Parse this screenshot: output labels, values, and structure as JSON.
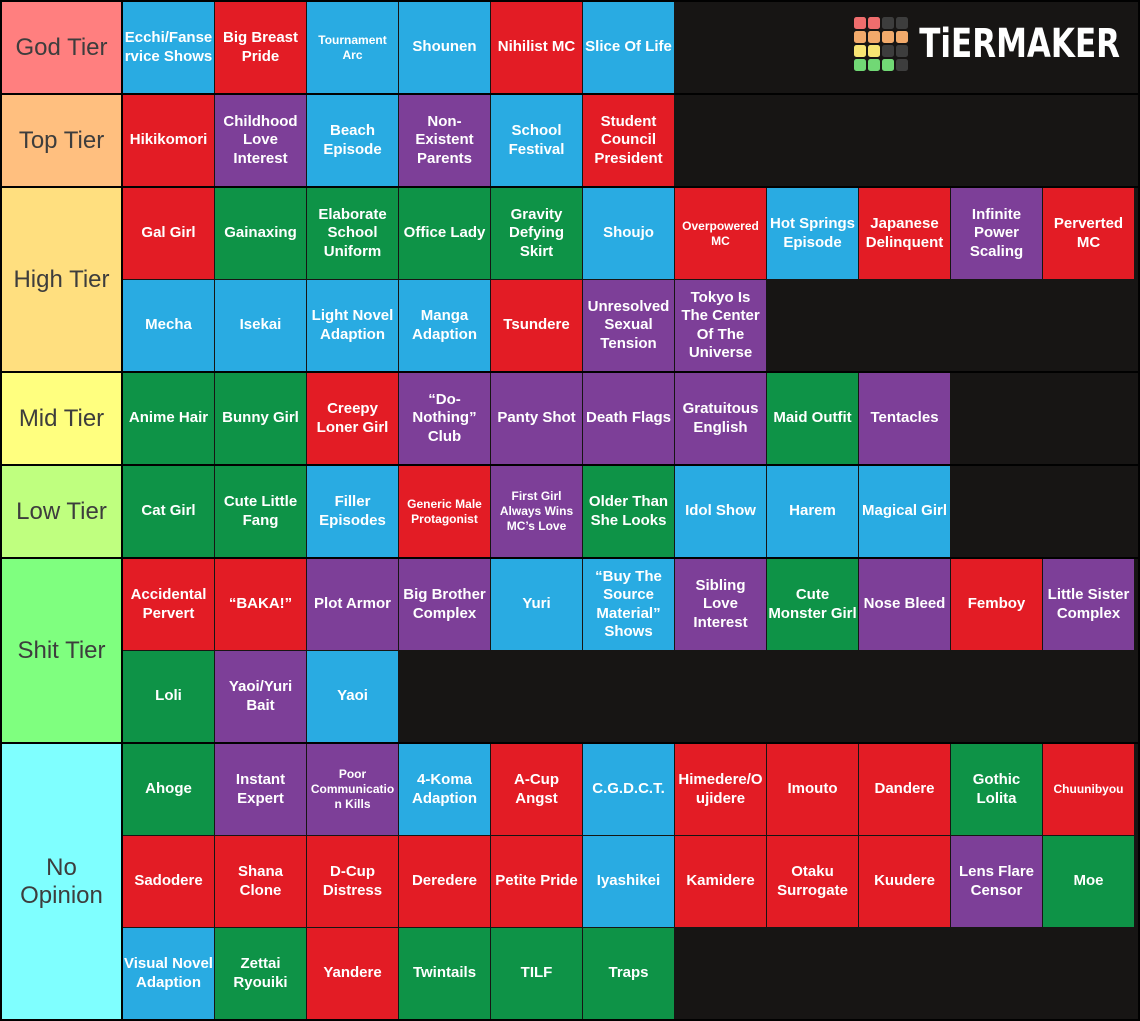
{
  "logo": {
    "wordmark": "TiERMAKER",
    "grid": [
      "#ef6d6d",
      "#ef6d6d",
      "#3d3d3d",
      "#3d3d3d",
      "#f2aa6b",
      "#f2aa6b",
      "#f2aa6b",
      "#f2aa6b",
      "#f7e473",
      "#f7e473",
      "#3d3d3d",
      "#3d3d3d",
      "#71d875",
      "#71d875",
      "#71d875",
      "#3d3d3d"
    ]
  },
  "colors": {
    "red": "#e31c25",
    "blue": "#29abe2",
    "green": "#0e9347",
    "purple": "#7d3f98",
    "board_bg": "#171514",
    "divider": "#010101",
    "tile_text": "#ffffff",
    "label_text": "#3d3d3d"
  },
  "tiers": [
    {
      "label": "God Tier",
      "color": "#ff7f7f",
      "rows": [
        [
          {
            "t": "Ecchi/Fanservice Shows",
            "c": "blue"
          },
          {
            "t": "Big Breast Pride",
            "c": "red"
          },
          {
            "t": "Tournament Arc",
            "c": "blue",
            "s": 1
          },
          {
            "t": "Shounen",
            "c": "blue"
          },
          {
            "t": "Nihilist MC",
            "c": "red"
          },
          {
            "t": "Slice Of Life",
            "c": "blue"
          }
        ]
      ]
    },
    {
      "label": "Top Tier",
      "color": "#ffbf7f",
      "rows": [
        [
          {
            "t": "Hikikomori",
            "c": "red"
          },
          {
            "t": "Childhood Love Interest",
            "c": "purple"
          },
          {
            "t": "Beach Episode",
            "c": "blue"
          },
          {
            "t": "Non-Existent Parents",
            "c": "purple"
          },
          {
            "t": "School Festival",
            "c": "blue"
          },
          {
            "t": "Student Council President",
            "c": "red"
          }
        ]
      ]
    },
    {
      "label": "High Tier",
      "color": "#ffdf7f",
      "rows": [
        [
          {
            "t": "Gal Girl",
            "c": "red"
          },
          {
            "t": "Gainaxing",
            "c": "green"
          },
          {
            "t": "Elaborate School Uniform",
            "c": "green"
          },
          {
            "t": "Office Lady",
            "c": "green"
          },
          {
            "t": "Gravity Defying Skirt",
            "c": "green"
          },
          {
            "t": "Shoujo",
            "c": "blue"
          },
          {
            "t": "Overpowered MC",
            "c": "red",
            "s": 1
          },
          {
            "t": "Hot Springs Episode",
            "c": "blue"
          },
          {
            "t": "Japanese Delinquent",
            "c": "red"
          },
          {
            "t": "Infinite Power Scaling",
            "c": "purple"
          },
          {
            "t": "Perverted MC",
            "c": "red"
          }
        ],
        [
          {
            "t": "Mecha",
            "c": "blue"
          },
          {
            "t": "Isekai",
            "c": "blue"
          },
          {
            "t": "Light Novel Adaption",
            "c": "blue"
          },
          {
            "t": "Manga Adaption",
            "c": "blue"
          },
          {
            "t": "Tsundere",
            "c": "red"
          },
          {
            "t": "Unresolved Sexual Tension",
            "c": "purple"
          },
          {
            "t": "Tokyo Is The Center Of The Universe",
            "c": "purple"
          }
        ]
      ]
    },
    {
      "label": "Mid Tier",
      "color": "#ffff7f",
      "rows": [
        [
          {
            "t": "Anime Hair",
            "c": "green"
          },
          {
            "t": "Bunny Girl",
            "c": "green"
          },
          {
            "t": "Creepy Loner Girl",
            "c": "red"
          },
          {
            "t": "“Do-Nothing” Club",
            "c": "purple"
          },
          {
            "t": "Panty Shot",
            "c": "purple"
          },
          {
            "t": "Death Flags",
            "c": "purple"
          },
          {
            "t": "Gratuitous English",
            "c": "purple"
          },
          {
            "t": "Maid Outfit",
            "c": "green"
          },
          {
            "t": "Tentacles",
            "c": "purple"
          }
        ]
      ]
    },
    {
      "label": "Low Tier",
      "color": "#bfff7f",
      "rows": [
        [
          {
            "t": "Cat Girl",
            "c": "green"
          },
          {
            "t": "Cute Little Fang",
            "c": "green"
          },
          {
            "t": "Filler Episodes",
            "c": "blue"
          },
          {
            "t": "Generic Male Protagonist",
            "c": "red",
            "s": 1
          },
          {
            "t": "First Girl Always Wins MC’s Love",
            "c": "purple",
            "s": 1
          },
          {
            "t": "Older Than She Looks",
            "c": "green"
          },
          {
            "t": "Idol Show",
            "c": "blue"
          },
          {
            "t": "Harem",
            "c": "blue"
          },
          {
            "t": "Magical Girl",
            "c": "blue"
          }
        ]
      ]
    },
    {
      "label": "Shit Tier",
      "color": "#7fff7f",
      "rows": [
        [
          {
            "t": "Accidental Pervert",
            "c": "red"
          },
          {
            "t": "“BAKA!”",
            "c": "red"
          },
          {
            "t": "Plot Armor",
            "c": "purple"
          },
          {
            "t": "Big Brother Complex",
            "c": "purple"
          },
          {
            "t": "Yuri",
            "c": "blue"
          },
          {
            "t": "“Buy The Source Material” Shows",
            "c": "blue"
          },
          {
            "t": "Sibling Love Interest",
            "c": "purple"
          },
          {
            "t": "Cute Monster Girl",
            "c": "green"
          },
          {
            "t": "Nose Bleed",
            "c": "purple"
          },
          {
            "t": "Femboy",
            "c": "red"
          },
          {
            "t": "Little Sister Complex",
            "c": "purple"
          }
        ],
        [
          {
            "t": "Loli",
            "c": "green"
          },
          {
            "t": "Yaoi/Yuri Bait",
            "c": "purple"
          },
          {
            "t": "Yaoi",
            "c": "blue"
          }
        ]
      ]
    },
    {
      "label": "No Opinion",
      "color": "#7fffff",
      "rows": [
        [
          {
            "t": "Ahoge",
            "c": "green"
          },
          {
            "t": "Instant Expert",
            "c": "purple"
          },
          {
            "t": "Poor Communication Kills",
            "c": "purple",
            "s": 1
          },
          {
            "t": "4-Koma Adaption",
            "c": "blue"
          },
          {
            "t": "A-Cup Angst",
            "c": "red"
          },
          {
            "t": "C.G.D.C.T.",
            "c": "blue"
          },
          {
            "t": "Himedere/Oujidere",
            "c": "red"
          },
          {
            "t": "Imouto",
            "c": "red"
          },
          {
            "t": "Dandere",
            "c": "red"
          },
          {
            "t": "Gothic Lolita",
            "c": "green"
          },
          {
            "t": "Chuunibyou",
            "c": "red",
            "s": 1
          }
        ],
        [
          {
            "t": "Sadodere",
            "c": "red"
          },
          {
            "t": "Shana Clone",
            "c": "red"
          },
          {
            "t": "D-Cup Distress",
            "c": "red"
          },
          {
            "t": "Deredere",
            "c": "red"
          },
          {
            "t": "Petite Pride",
            "c": "red"
          },
          {
            "t": "Iyashikei",
            "c": "blue"
          },
          {
            "t": "Kamidere",
            "c": "red"
          },
          {
            "t": "Otaku Surrogate",
            "c": "red"
          },
          {
            "t": "Kuudere",
            "c": "red"
          },
          {
            "t": "Lens Flare Censor",
            "c": "purple"
          },
          {
            "t": "Moe",
            "c": "green"
          }
        ],
        [
          {
            "t": "Visual Novel Adaption",
            "c": "blue"
          },
          {
            "t": "Zettai Ryouiki",
            "c": "green"
          },
          {
            "t": "Yandere",
            "c": "red"
          },
          {
            "t": "Twintails",
            "c": "green"
          },
          {
            "t": "TILF",
            "c": "green"
          },
          {
            "t": "Traps",
            "c": "green"
          }
        ]
      ]
    }
  ]
}
